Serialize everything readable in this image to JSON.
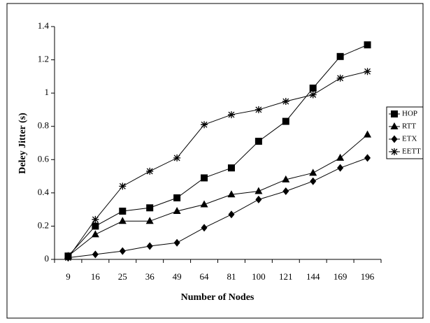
{
  "chart_data": {
    "type": "line",
    "x_label": "Number of Nodes",
    "y_label": "Deley Jitter  (s)",
    "categories": [
      "9",
      "16",
      "25",
      "36",
      "49",
      "64",
      "81",
      "100",
      "121",
      "144",
      "169",
      "196"
    ],
    "series": [
      {
        "name": "HOP",
        "color": "#000000",
        "marker": "square",
        "values": [
          0.02,
          0.2,
          0.29,
          0.31,
          0.37,
          0.49,
          0.55,
          0.71,
          0.83,
          1.03,
          1.22,
          1.29
        ]
      },
      {
        "name": "RTT",
        "color": "#000000",
        "marker": "triangle",
        "values": [
          0.02,
          0.15,
          0.23,
          0.23,
          0.29,
          0.33,
          0.39,
          0.41,
          0.48,
          0.52,
          0.61,
          0.75
        ]
      },
      {
        "name": "ETX",
        "color": "#000000",
        "marker": "diamond",
        "values": [
          0.01,
          0.03,
          0.05,
          0.08,
          0.1,
          0.19,
          0.27,
          0.36,
          0.41,
          0.47,
          0.55,
          0.61
        ]
      },
      {
        "name": "EETT",
        "color": "#000000",
        "marker": "asterisk",
        "values": [
          0.01,
          0.24,
          0.44,
          0.53,
          0.61,
          0.81,
          0.87,
          0.9,
          0.95,
          0.99,
          1.09,
          1.13
        ]
      }
    ],
    "ylim": [
      0,
      1.4
    ],
    "yticks": [
      0,
      0.2,
      0.4,
      0.6,
      0.8,
      1,
      1.2,
      1.4
    ],
    "grid": false,
    "legend": "right"
  }
}
